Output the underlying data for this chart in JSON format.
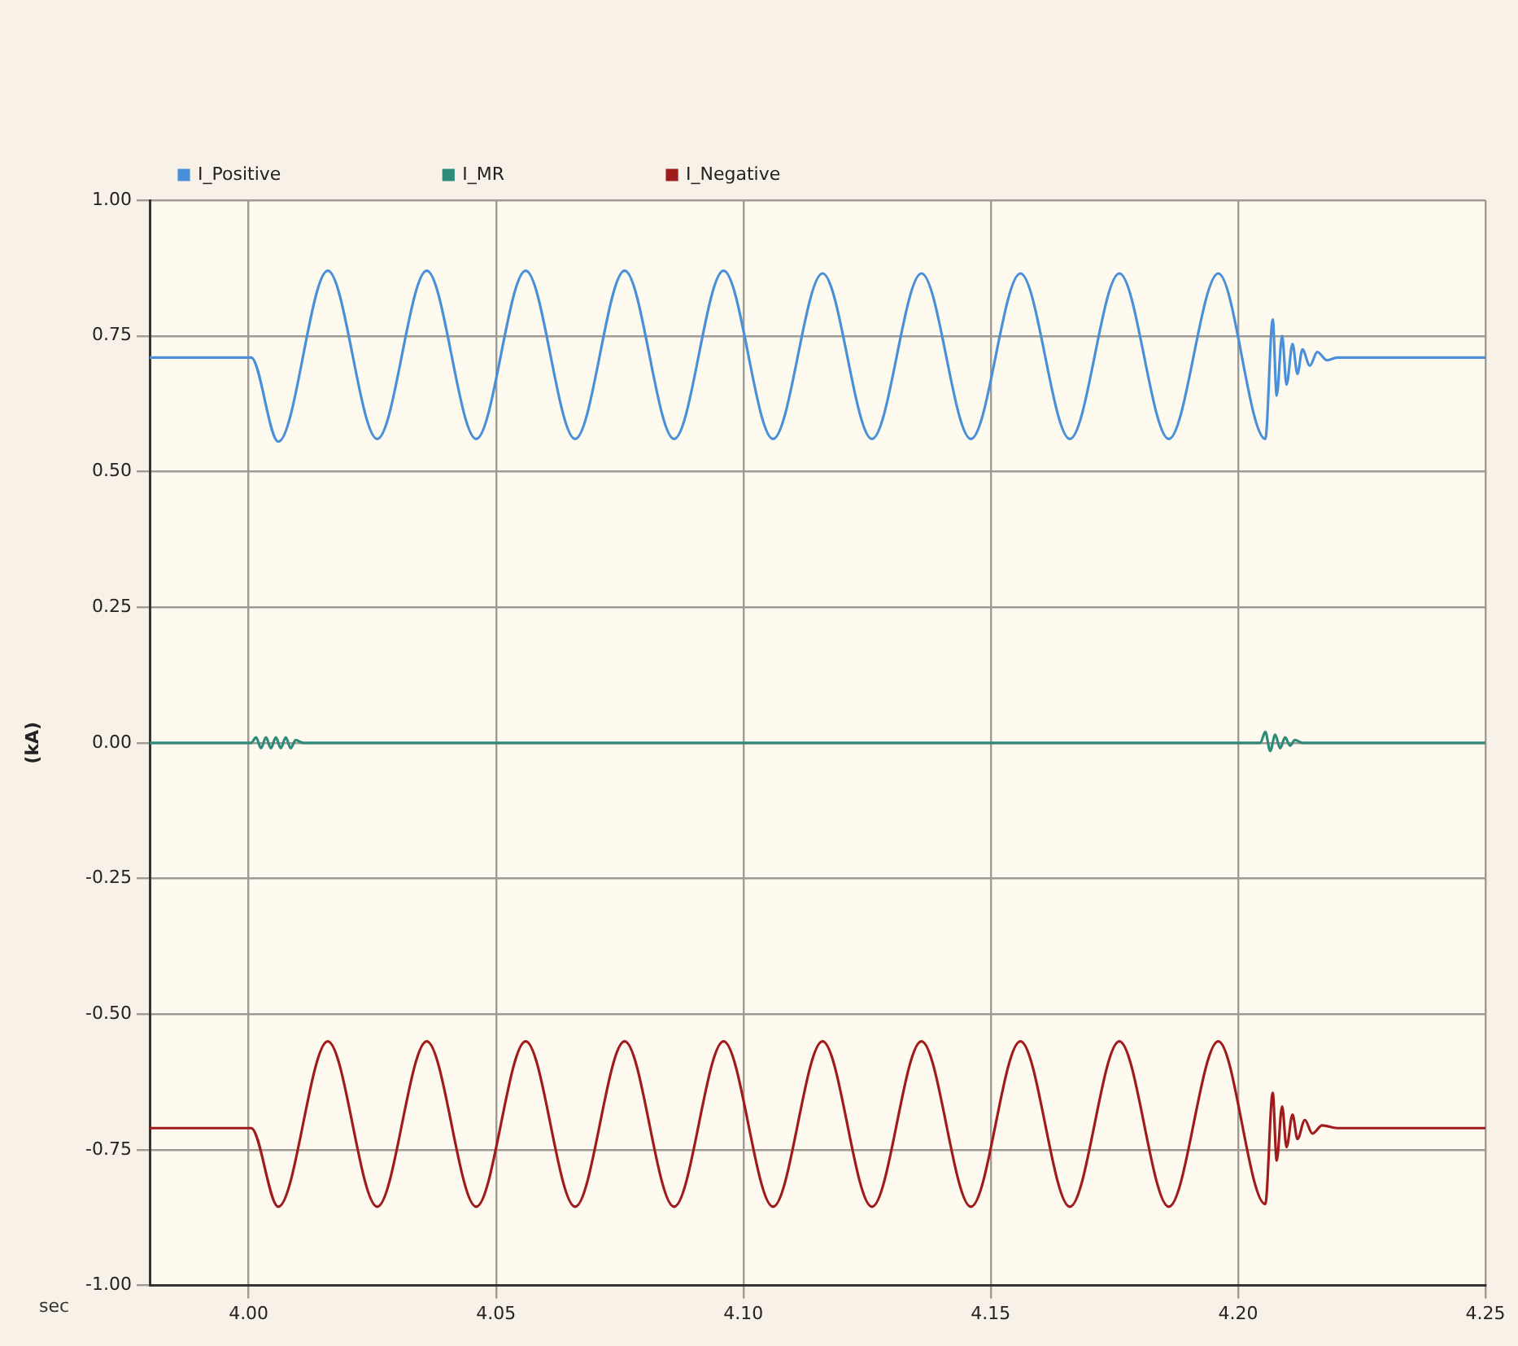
{
  "chart_data": {
    "type": "line",
    "xlabel": "sec",
    "ylabel": "(kA)",
    "xlim": [
      3.98,
      4.25
    ],
    "xticks": [
      {
        "value": 4.0,
        "label": "4.00"
      },
      4.05,
      {
        "value": 4.1,
        "label": "4.10"
      },
      4.15,
      {
        "value": 4.2,
        "label": "4.20"
      },
      4.25
    ],
    "ylim": [
      -1,
      1
    ],
    "yticks": [
      {
        "value": -1,
        "label": "-1.00"
      },
      {
        "value": -0.75,
        "label": "-0.75"
      },
      {
        "value": -0.5,
        "label": "-0.50"
      },
      {
        "value": -0.25,
        "label": "-0.25"
      },
      {
        "value": 0,
        "label": "0.00"
      },
      {
        "value": 0.25,
        "label": "0.25"
      },
      {
        "value": 0.5,
        "label": "0.50"
      },
      {
        "value": 0.75,
        "label": "0.75"
      },
      {
        "value": 1,
        "label": "1.00"
      }
    ],
    "grid": true,
    "legend": "top",
    "marker": "none",
    "line_style": "solid",
    "series": [
      {
        "name": "I_Positive",
        "color": "#4a90d9",
        "x": [
          3.98,
          4.0005,
          4.006,
          4.016,
          4.026,
          4.036,
          4.046,
          4.056,
          4.066,
          4.076,
          4.086,
          4.096,
          4.106,
          4.116,
          4.126,
          4.136,
          4.146,
          4.156,
          4.166,
          4.176,
          4.186,
          4.196,
          4.2055,
          4.207,
          4.2078,
          4.2089,
          4.2098,
          4.211,
          4.212,
          4.213,
          4.2145,
          4.216,
          4.218,
          4.22,
          4.25
        ],
        "values": [
          0.71,
          0.71,
          0.555,
          0.87,
          0.56,
          0.87,
          0.56,
          0.87,
          0.56,
          0.87,
          0.56,
          0.87,
          0.56,
          0.865,
          0.56,
          0.865,
          0.56,
          0.865,
          0.56,
          0.865,
          0.56,
          0.865,
          0.56,
          0.78,
          0.64,
          0.75,
          0.66,
          0.735,
          0.68,
          0.725,
          0.695,
          0.72,
          0.705,
          0.71,
          0.71
        ]
      },
      {
        "name": "I_MR",
        "color": "#2e8b7a",
        "x": [
          3.98,
          4.0005,
          4.0015,
          4.0025,
          4.0035,
          4.0045,
          4.0055,
          4.0065,
          4.0075,
          4.0085,
          4.0095,
          4.011,
          4.2045,
          4.2055,
          4.2065,
          4.2075,
          4.2085,
          4.2095,
          4.2105,
          4.2115,
          4.213,
          4.25
        ],
        "values": [
          0,
          0,
          0.01,
          -0.01,
          0.01,
          -0.01,
          0.01,
          -0.01,
          0.01,
          -0.01,
          0.005,
          0,
          0,
          0.02,
          -0.015,
          0.015,
          -0.01,
          0.01,
          -0.005,
          0.005,
          0,
          0
        ]
      },
      {
        "name": "I_Negative",
        "color": "#a01c1c",
        "x": [
          3.98,
          4.0005,
          4.006,
          4.016,
          4.026,
          4.036,
          4.046,
          4.056,
          4.066,
          4.076,
          4.086,
          4.096,
          4.106,
          4.116,
          4.126,
          4.136,
          4.146,
          4.156,
          4.166,
          4.176,
          4.186,
          4.196,
          4.2055,
          4.207,
          4.2078,
          4.2089,
          4.2098,
          4.211,
          4.212,
          4.2135,
          4.215,
          4.217,
          4.22,
          4.25
        ],
        "values": [
          -0.71,
          -0.71,
          -0.855,
          -0.55,
          -0.855,
          -0.55,
          -0.855,
          -0.55,
          -0.855,
          -0.55,
          -0.855,
          -0.55,
          -0.855,
          -0.55,
          -0.855,
          -0.55,
          -0.855,
          -0.55,
          -0.855,
          -0.55,
          -0.855,
          -0.55,
          -0.85,
          -0.645,
          -0.77,
          -0.67,
          -0.745,
          -0.685,
          -0.73,
          -0.695,
          -0.72,
          -0.705,
          -0.71,
          -0.71
        ]
      }
    ]
  }
}
